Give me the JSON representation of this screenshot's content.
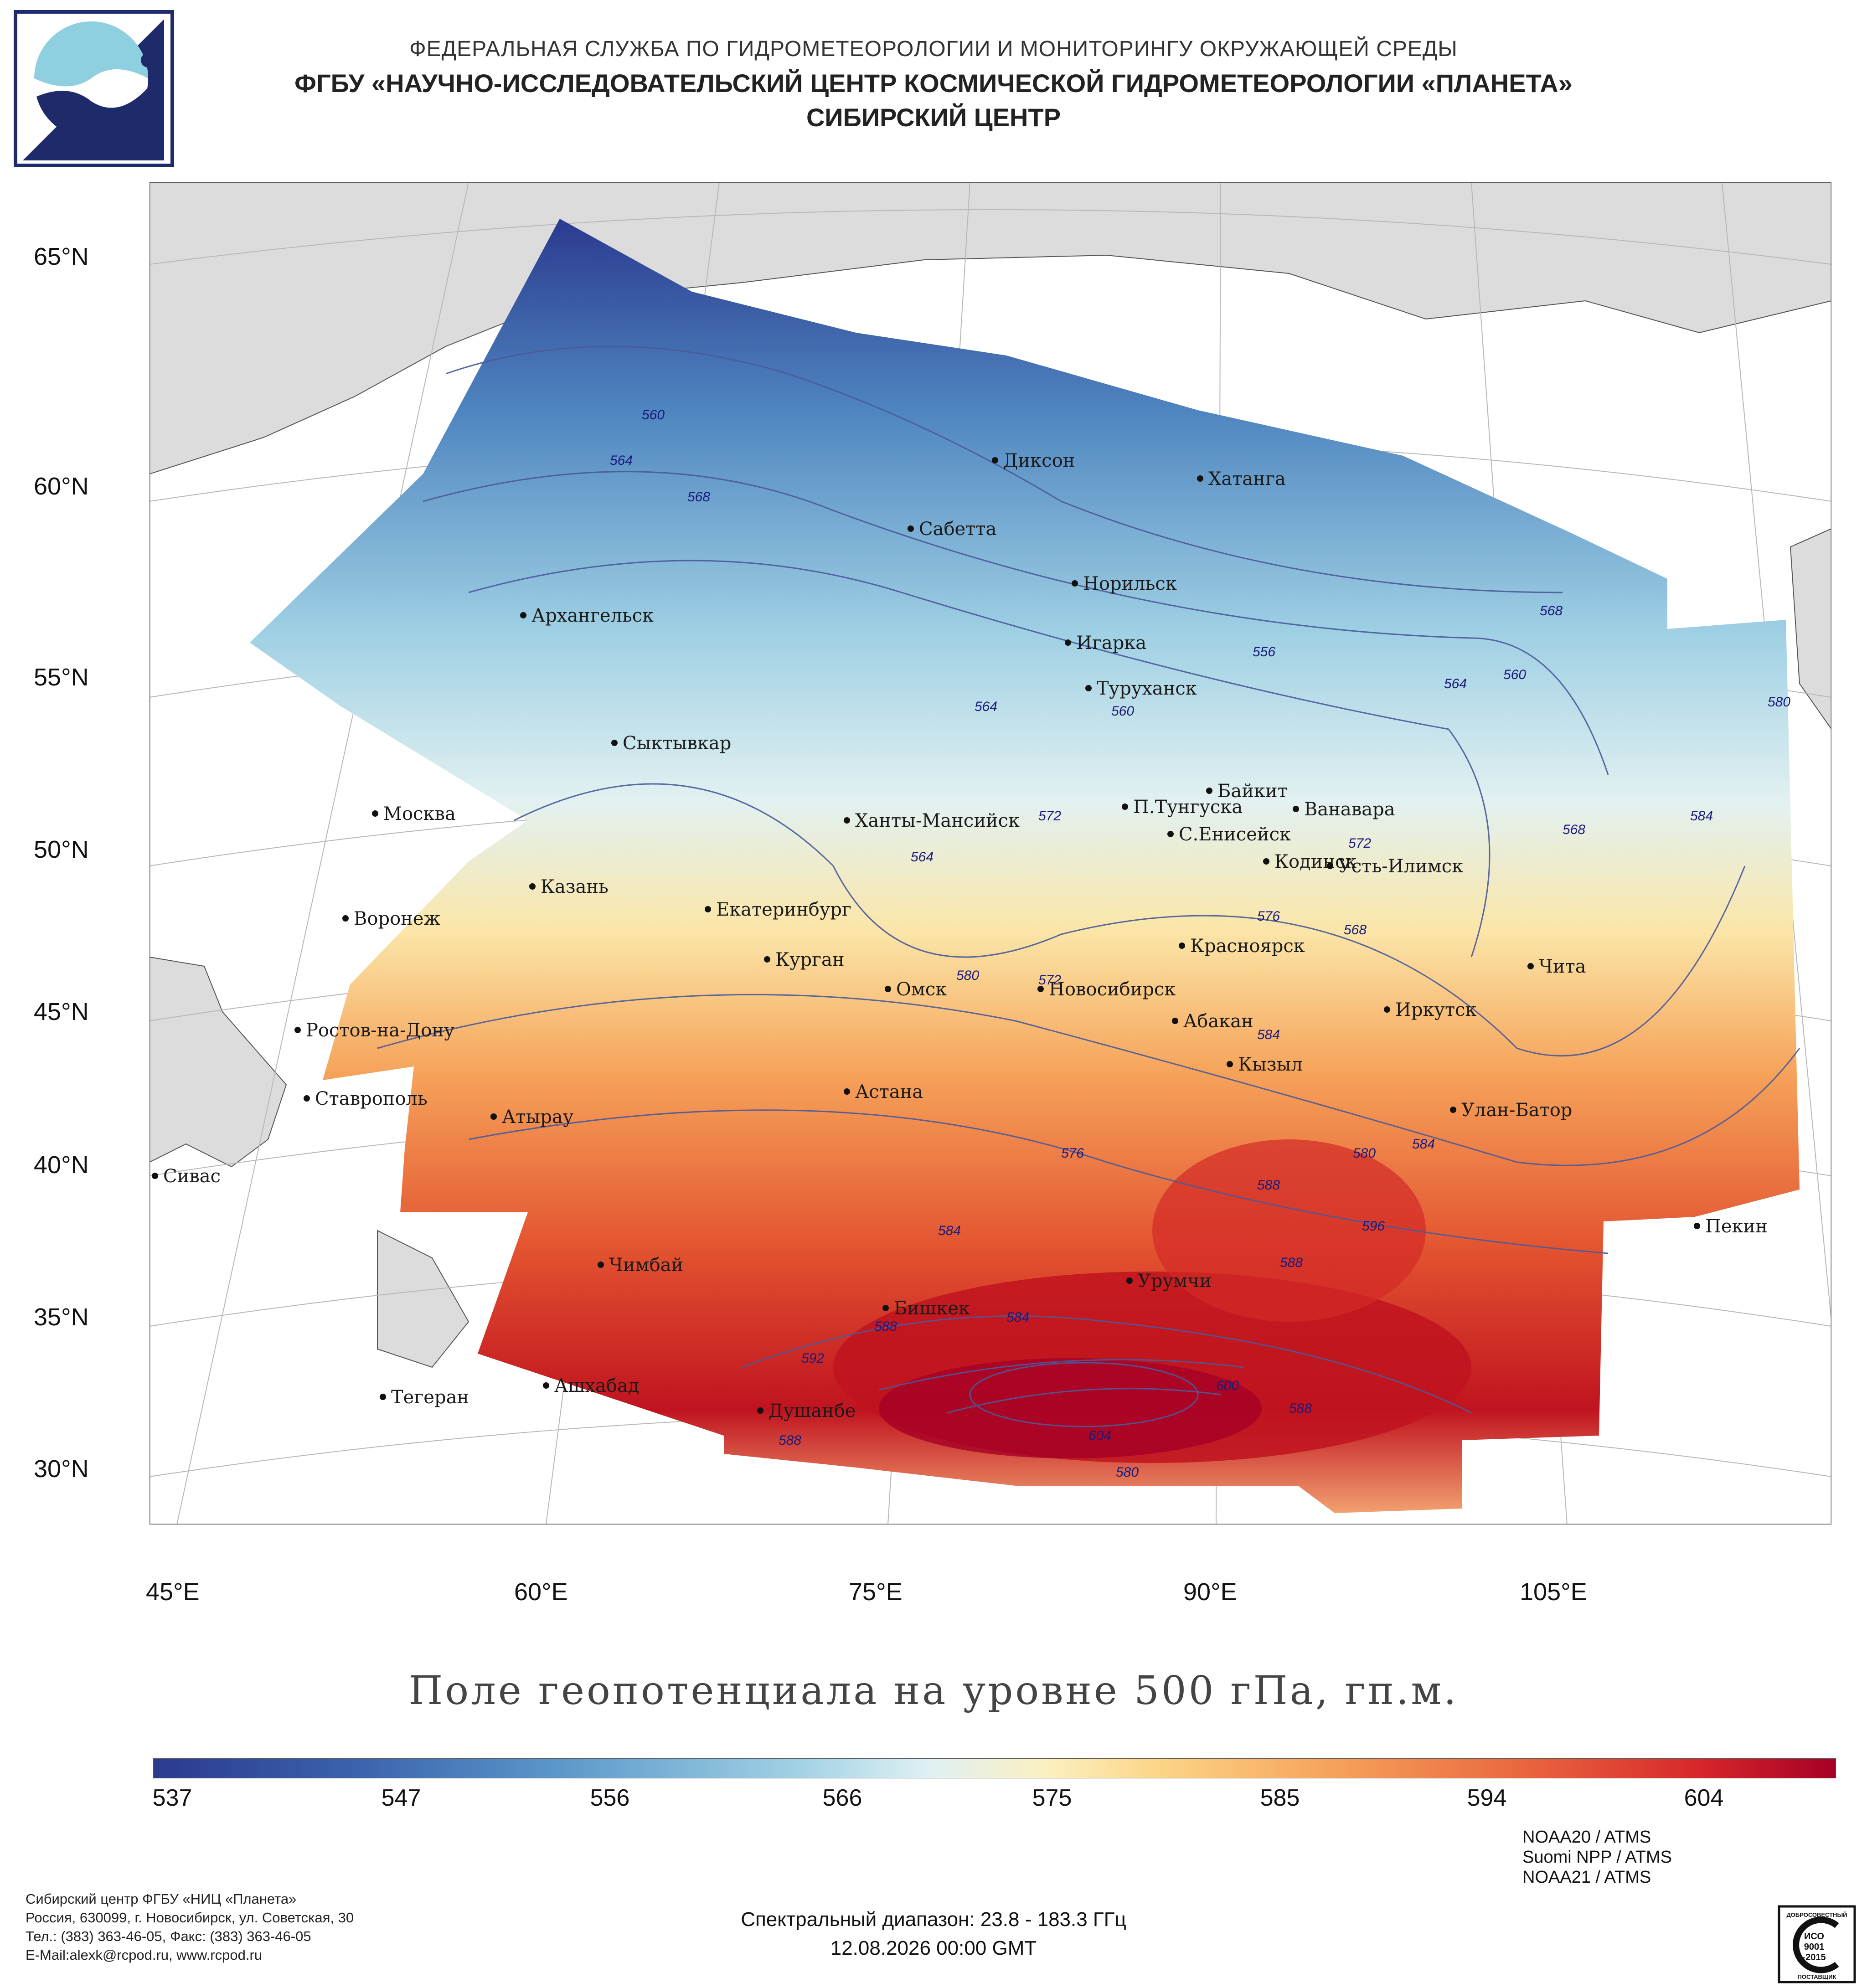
{
  "header": {
    "line1": "ФЕДЕРАЛЬНАЯ СЛУЖБА ПО ГИДРОМЕТЕОРОЛОГИИ И МОНИТОРИНГУ ОКРУЖАЮЩЕЙ СРЕДЫ",
    "line2": "ФГБУ «НАУЧНО-ИССЛЕДОВАТЕЛЬСКИЙ ЦЕНТР КОСМИЧЕСКОЙ ГИДРОМЕТЕОРОЛОГИИ «ПЛАНЕТА»",
    "line3": "СИБИРСКИЙ ЦЕНТР"
  },
  "map": {
    "lat_labels": [
      "65°N",
      "60°N",
      "55°N",
      "50°N",
      "45°N",
      "40°N",
      "35°N",
      "30°N"
    ],
    "lon_labels": [
      "45°E",
      "60°E",
      "75°E",
      "90°E",
      "105°E"
    ],
    "cities": [
      "Диксон",
      "Хатанга",
      "Сабетта",
      "Норильск",
      "Архангельск",
      "Игарка",
      "Туруханск",
      "Сыктывкар",
      "Москва",
      "Байкит",
      "П.Тунгуска",
      "Ванавара",
      "Ханты-Мансийск",
      "С.Енисейск",
      "Кодинск",
      "Усть-Илимск",
      "Казань",
      "Екатеринбург",
      "Воронеж",
      "Красноярск",
      "Курган",
      "Чита",
      "Омск",
      "Новосибирск",
      "Ростов-на-Дону",
      "Абакан",
      "Иркутск",
      "Кызыл",
      "Ставрополь",
      "Астана",
      "Улан-Батор",
      "Атырау",
      "Сивас",
      "Пекин",
      "Чимбай",
      "Урумчи",
      "Бишкек",
      "Ашхабад",
      "Тегеран",
      "Душанбе"
    ],
    "isolines": [
      "560",
      "564",
      "568",
      "556",
      "564",
      "560",
      "564",
      "560",
      "568",
      "572",
      "564",
      "572",
      "568",
      "568",
      "576",
      "580",
      "572",
      "584",
      "576",
      "580",
      "584",
      "588",
      "584",
      "588",
      "596",
      "588",
      "584",
      "592",
      "600",
      "588",
      "588",
      "580",
      "604"
    ]
  },
  "map_title": "Поле геопотенциала на уровне 500 гПа, гп.м.",
  "colorbar": {
    "ticks": [
      "537",
      "547",
      "556",
      "566",
      "575",
      "585",
      "594",
      "604"
    ],
    "min": 537,
    "max": 610
  },
  "footer": {
    "org": [
      "Сибирский центр ФГБУ «НИЦ «Планета»",
      "Россия, 630099, г. Новосибирск, ул. Советская, 30",
      "Тел.: (383) 363-46-05, Факс: (383) 363-46-05",
      "E-Mail:alexk@rcpod.ru, www.rcpod.ru"
    ],
    "spectral": "Спектральный диапазон: 23.8 - 183.3 ГГц",
    "datetime": "12.08.2026 00:00 GMT",
    "satellites": [
      "NOAA20 / ATMS",
      "Suomi NPP / ATMS",
      "NOAA21 / ATMS"
    ],
    "cert": {
      "top": "ДОБРОСОВЕСТНЫЙ",
      "l1": "ИСО",
      "l2": "9001",
      "l3": "-2015",
      "bottom": "ПОСТАВЩИК"
    }
  },
  "colors": {
    "cold": "#2b3a8f",
    "neutral": "#f8f1d8",
    "warm": "#a50026",
    "land": "#dcdcdc",
    "contour": "#4a5a9a"
  }
}
